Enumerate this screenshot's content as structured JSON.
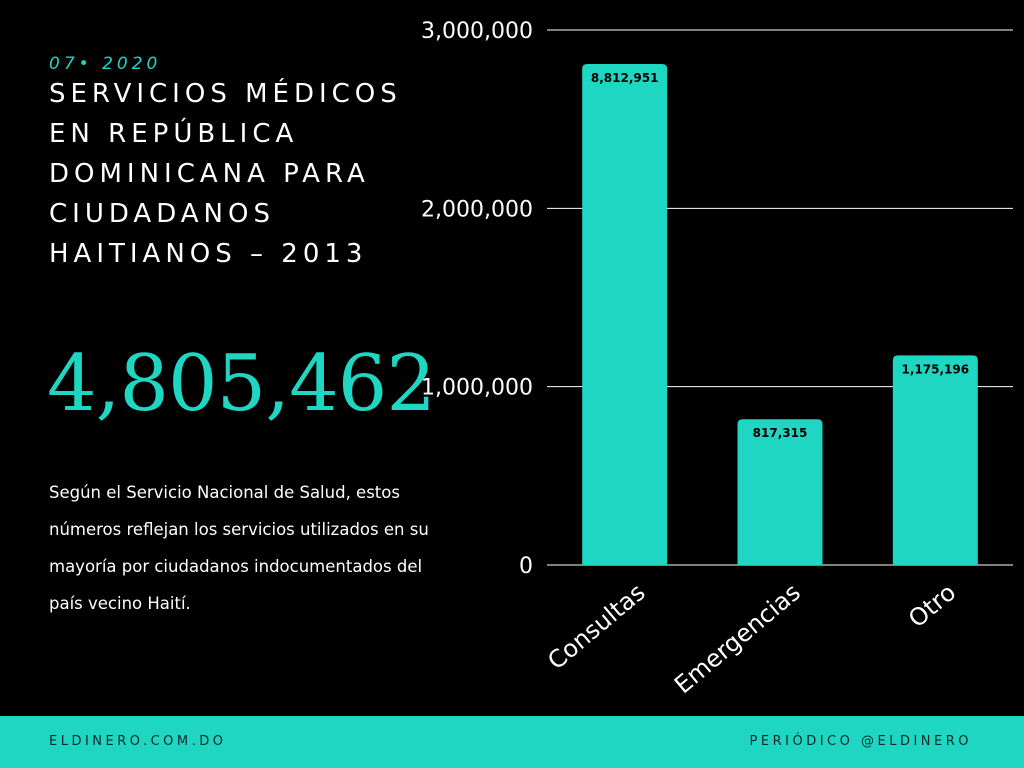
{
  "header": {
    "date": "07• 2020",
    "title": "SERVICIOS MÉDICOS EN REPÚBLICA DOMINICANA PARA CIUDADANOS HAITIANOS – 2013",
    "highlight_number": "4,805,462",
    "description": "Según el Servicio Nacional de Salud, estos números reflejan los servicios utilizados en su mayoría por ciudadanos indocumentados del país vecino Haití."
  },
  "chart_data": {
    "type": "bar",
    "categories": [
      "Consultas",
      "Emergencias",
      "Otro"
    ],
    "values": [
      8812951,
      817315,
      1175196
    ],
    "data_labels": [
      "8,812,951",
      "817,315",
      "1,175,196"
    ],
    "yticks": [
      0,
      1000000,
      2000000,
      3000000
    ],
    "ytick_labels": [
      "0",
      "1,000,000",
      "2,000,000",
      "3,000,000"
    ],
    "ylim": [
      0,
      3000000
    ],
    "clipped_above_axis": true,
    "grid": true,
    "bar_color": "#1fd6c3",
    "title": "",
    "xlabel": "",
    "ylabel": ""
  },
  "footer": {
    "left": "ELDINERO.COM.DO",
    "right": "PERIÓDICO @ELDINERO"
  },
  "colors": {
    "background": "#000000",
    "accent": "#1fd6c3",
    "text": "#ffffff"
  }
}
